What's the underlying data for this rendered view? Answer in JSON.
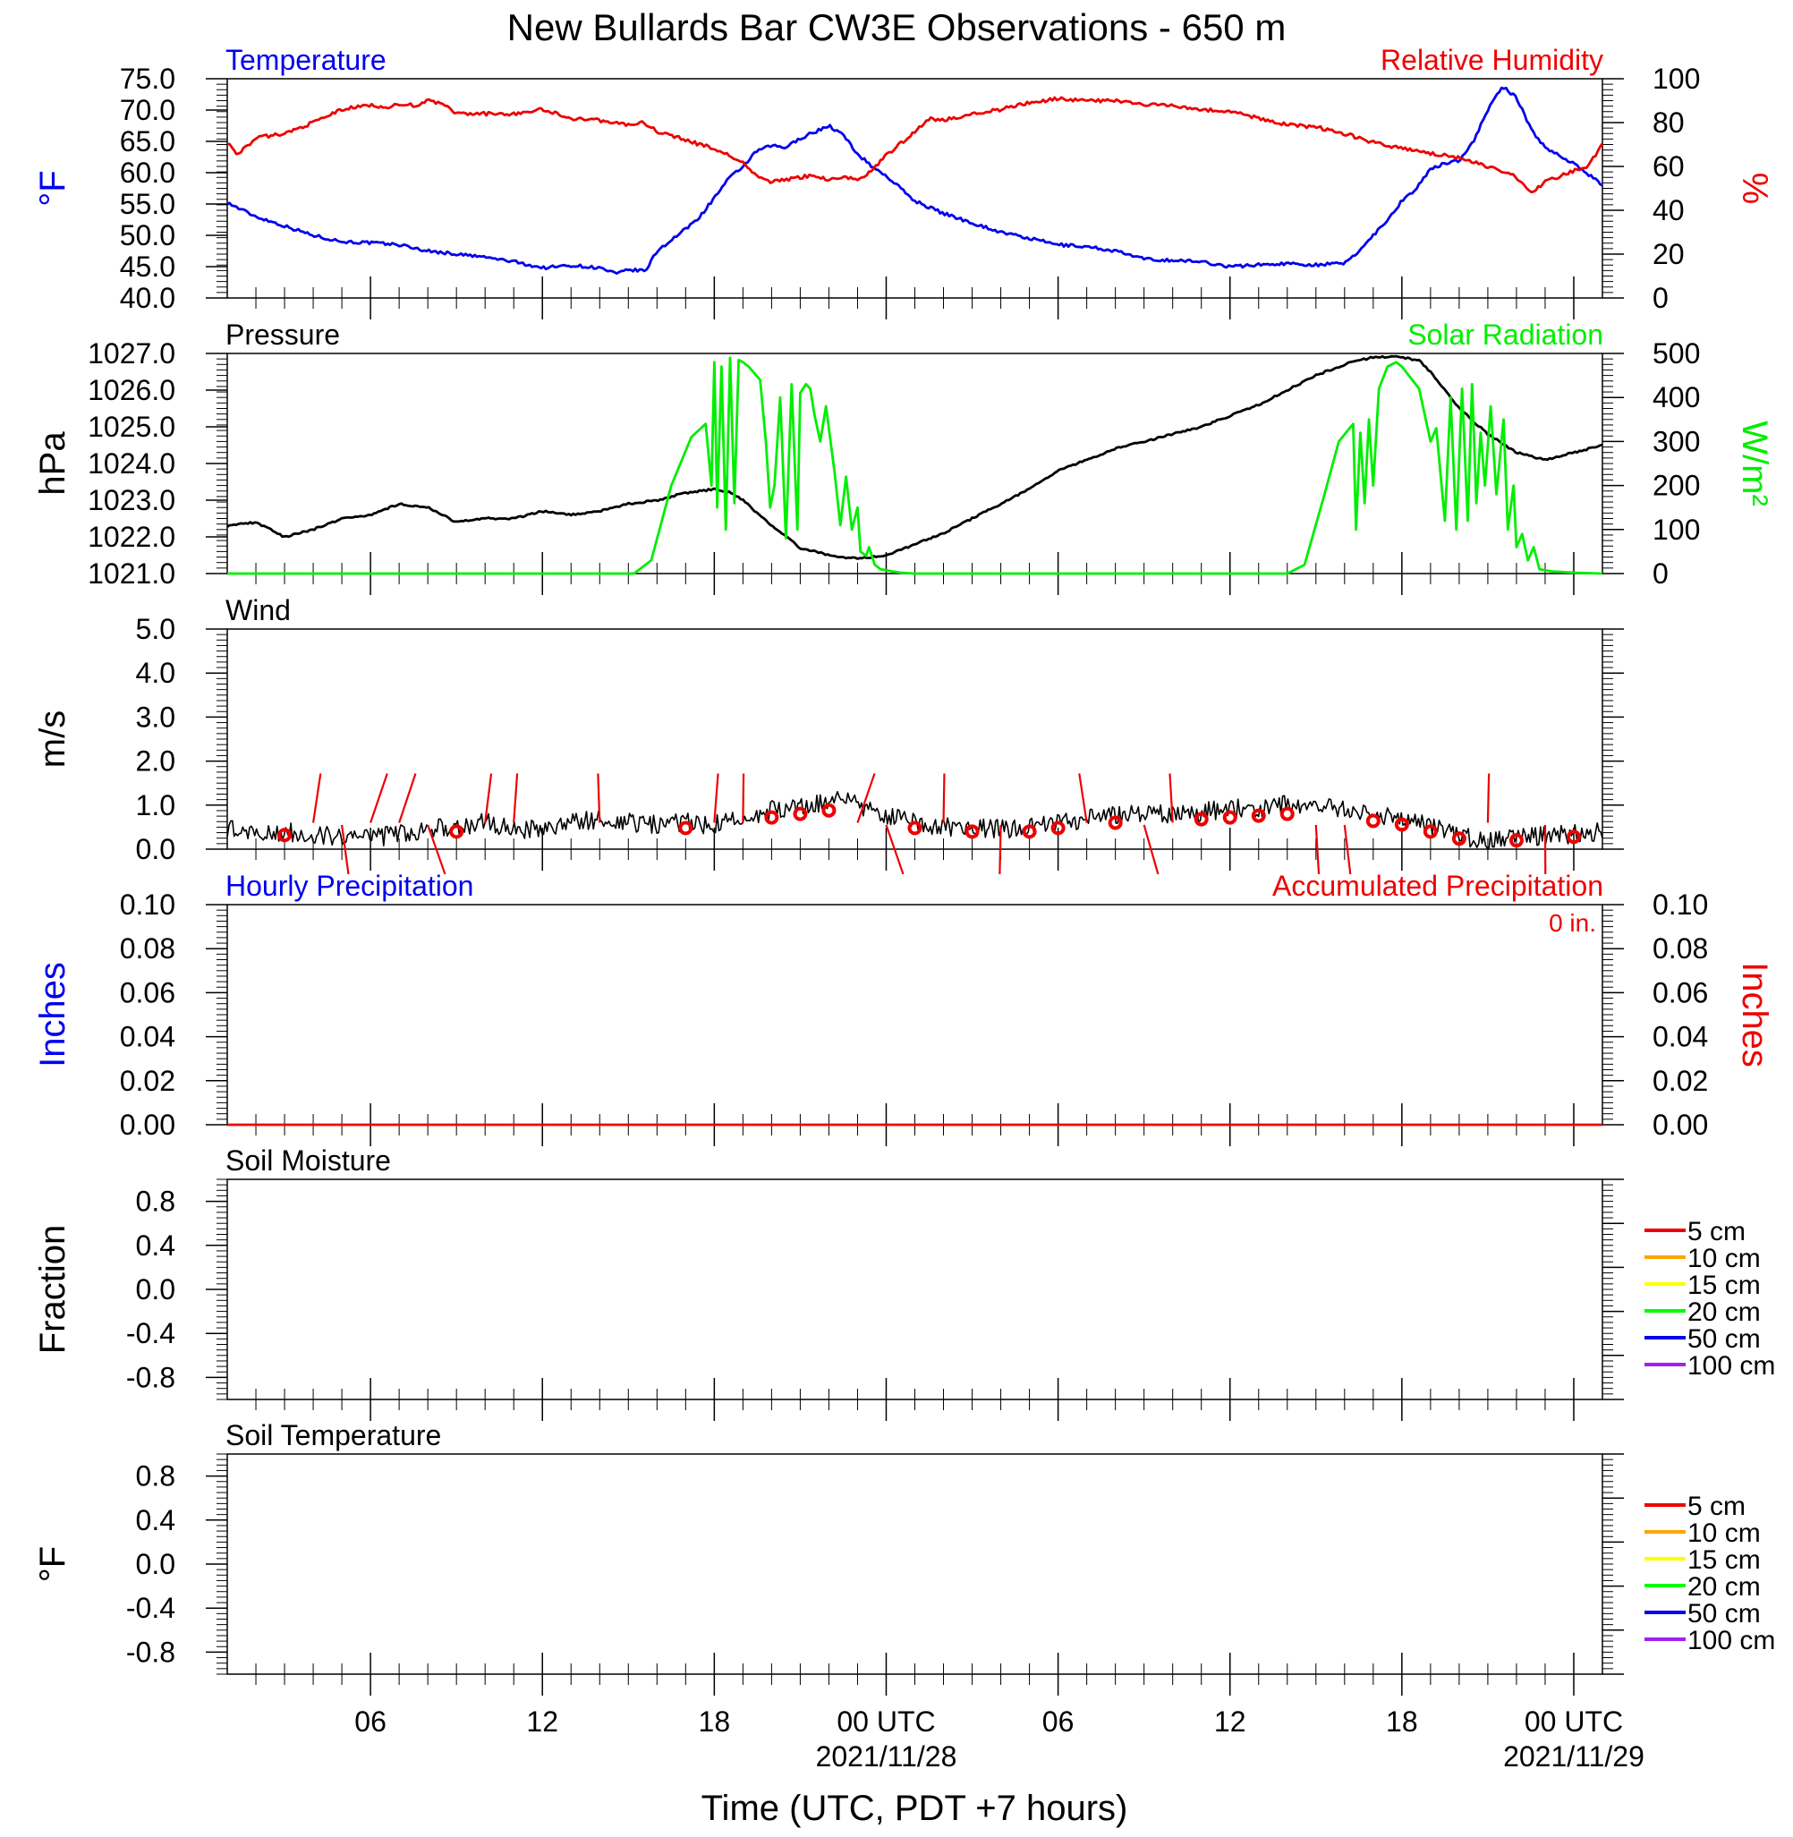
{
  "page_title": "New Bullards Bar CW3E Observations - 650 m",
  "x_axis": {
    "label": "Time (UTC, PDT +7 hours)",
    "ticks": [
      {
        "t": 6,
        "label": "06",
        "date": ""
      },
      {
        "t": 12,
        "label": "12",
        "date": ""
      },
      {
        "t": 18,
        "label": "18",
        "date": ""
      },
      {
        "t": 24,
        "label": "00 UTC",
        "date": "2021/11/28"
      },
      {
        "t": 30,
        "label": "06",
        "date": ""
      },
      {
        "t": 36,
        "label": "12",
        "date": ""
      },
      {
        "t": 42,
        "label": "18",
        "date": ""
      },
      {
        "t": 48,
        "label": "00 UTC",
        "date": "2021/11/29"
      }
    ]
  },
  "chart_data": [
    {
      "id": "temperature_humidity",
      "type": "line",
      "left_title": "Temperature",
      "right_title": "Relative Humidity",
      "left_unit": "°F",
      "right_unit": "%",
      "left_color": "#0000ee",
      "right_color": "#ee0000",
      "xlim": [
        1,
        49
      ],
      "ylim_left": [
        40,
        75
      ],
      "ylim_right": [
        0,
        100
      ],
      "left_ticks": [
        "40.0",
        "45.0",
        "50.0",
        "55.0",
        "60.0",
        "65.0",
        "70.0",
        "75.0"
      ],
      "right_ticks": [
        "0",
        "20",
        "40",
        "60",
        "80",
        "100"
      ],
      "series": [
        {
          "name": "Temperature",
          "axis": "left",
          "color": "#0000ee",
          "x": [
            1,
            2,
            3,
            4,
            5,
            6,
            7,
            8,
            9,
            10,
            11,
            12,
            13,
            14,
            14.6,
            15,
            15.6,
            16,
            17,
            17.5,
            18,
            18.5,
            19,
            19.5,
            20,
            20.5,
            21,
            21.5,
            22,
            22.5,
            23,
            23.5,
            24,
            25,
            26,
            27,
            28,
            29,
            30,
            31,
            32,
            33,
            34,
            35,
            36,
            37,
            38,
            39,
            40,
            40.5,
            41,
            41.5,
            42,
            42.5,
            43,
            43.5,
            44,
            44.5,
            45,
            45.5,
            46,
            46.5,
            47,
            48,
            49
          ],
          "y": [
            55.2,
            53.0,
            51.5,
            50.0,
            49.0,
            48.8,
            48.5,
            47.5,
            47.0,
            46.5,
            45.8,
            44.8,
            45.2,
            44.8,
            43.8,
            44.5,
            44.3,
            47.5,
            51.0,
            53.0,
            56.0,
            59.0,
            61.0,
            63.5,
            64.3,
            64.0,
            65.5,
            66.5,
            67.5,
            66.0,
            63.0,
            61.0,
            59.5,
            55.5,
            53.5,
            52.0,
            50.5,
            49.5,
            48.5,
            48.2,
            47.5,
            46.2,
            46.0,
            45.8,
            45.0,
            45.3,
            45.5,
            45.3,
            45.5,
            47.5,
            50.0,
            52.5,
            55.5,
            57.5,
            60.5,
            61.5,
            62.0,
            65.0,
            70.0,
            73.8,
            72.0,
            67.0,
            64.0,
            61.5,
            58.0
          ]
        },
        {
          "name": "Relative Humidity",
          "axis": "right",
          "color": "#ee0000",
          "x": [
            1,
            1.3,
            1.6,
            2,
            3,
            4,
            5,
            6,
            6.5,
            7,
            7.6,
            8,
            8.6,
            9,
            10,
            11,
            12,
            13,
            14,
            15,
            15.5,
            16,
            17,
            18,
            18.5,
            19,
            19.5,
            20,
            21,
            21.5,
            22,
            22.5,
            23,
            23.5,
            24,
            25,
            25.5,
            26,
            27,
            28,
            29,
            30,
            31,
            32,
            33,
            34,
            35,
            36,
            37,
            38,
            39,
            40,
            41,
            42,
            43,
            44,
            45,
            45.5,
            46,
            46.5,
            47,
            48,
            48.5,
            49
          ],
          "y": [
            71,
            66,
            68,
            73,
            75,
            80,
            86,
            88,
            87,
            88,
            88,
            90,
            88,
            84,
            84,
            84,
            86,
            82,
            81,
            79,
            80,
            76,
            72,
            68,
            65,
            62,
            55,
            53,
            55,
            56,
            54,
            55,
            54,
            58,
            65,
            76,
            82,
            81,
            84,
            86,
            89,
            91,
            90,
            90,
            88,
            88,
            86,
            85,
            82,
            79,
            78,
            75,
            71,
            68,
            66,
            64,
            60,
            58,
            55,
            48,
            53,
            58,
            60,
            70
          ]
        }
      ]
    },
    {
      "id": "pressure_solar",
      "type": "line",
      "left_title": "Pressure",
      "right_title": "Solar Radiation",
      "left_unit": "hPa",
      "right_unit": "W/m²",
      "left_color": "#000000",
      "right_color": "#00ee00",
      "xlim": [
        1,
        49
      ],
      "ylim_left": [
        1021,
        1027
      ],
      "ylim_right": [
        0,
        500
      ],
      "left_ticks": [
        "1021.0",
        "1022.0",
        "1023.0",
        "1024.0",
        "1025.0",
        "1026.0",
        "1027.0"
      ],
      "right_ticks": [
        "0",
        "100",
        "200",
        "300",
        "400",
        "500"
      ],
      "series": [
        {
          "name": "Pressure",
          "axis": "left",
          "color": "#000000",
          "x": [
            1,
            2,
            3,
            4,
            5,
            6,
            7,
            8,
            9,
            10,
            11,
            12,
            13,
            14,
            15,
            16,
            17,
            18,
            18.6,
            19,
            20,
            21,
            22,
            23,
            24,
            25,
            26,
            27,
            28,
            29,
            30,
            31,
            32,
            33,
            34,
            35,
            36,
            37,
            38,
            39,
            40,
            41,
            42,
            42.6,
            43,
            44,
            45,
            46,
            47,
            48,
            49
          ],
          "y": [
            1022.3,
            1022.4,
            1022.0,
            1022.2,
            1022.5,
            1022.6,
            1022.9,
            1022.8,
            1022.4,
            1022.5,
            1022.5,
            1022.7,
            1022.6,
            1022.7,
            1022.9,
            1023.0,
            1023.2,
            1023.3,
            1023.2,
            1023.0,
            1022.3,
            1021.7,
            1021.5,
            1021.4,
            1021.5,
            1021.8,
            1022.1,
            1022.5,
            1022.9,
            1023.3,
            1023.8,
            1024.1,
            1024.4,
            1024.6,
            1024.8,
            1025.0,
            1025.3,
            1025.6,
            1026.0,
            1026.4,
            1026.7,
            1026.9,
            1026.9,
            1026.8,
            1026.5,
            1025.5,
            1024.8,
            1024.3,
            1024.1,
            1024.3,
            1024.5
          ]
        },
        {
          "name": "Solar Radiation",
          "axis": "right",
          "color": "#00ee00",
          "x": [
            1,
            15.2,
            15.8,
            16.5,
            17.2,
            17.7,
            17.9,
            18.0,
            18.1,
            18.25,
            18.4,
            18.55,
            18.7,
            18.85,
            19.0,
            19.2,
            19.6,
            19.8,
            19.95,
            20.1,
            20.3,
            20.5,
            20.7,
            20.9,
            21.0,
            21.2,
            21.35,
            21.5,
            21.7,
            21.9,
            22.2,
            22.4,
            22.6,
            22.8,
            23.0,
            23.1,
            23.3,
            23.4,
            23.6,
            23.8,
            24.2,
            24.5,
            25,
            38,
            38.6,
            39.3,
            39.8,
            40.3,
            40.4,
            40.55,
            40.7,
            40.85,
            41.0,
            41.2,
            41.5,
            41.8,
            42.0,
            42.6,
            43.0,
            43.2,
            43.5,
            43.7,
            43.9,
            44.1,
            44.3,
            44.45,
            44.6,
            44.75,
            44.9,
            45.1,
            45.3,
            45.55,
            45.7,
            45.9,
            46.0,
            46.2,
            46.4,
            46.6,
            46.8,
            47.2,
            48,
            49
          ],
          "y": [
            0,
            0,
            30,
            200,
            310,
            340,
            200,
            480,
            150,
            470,
            100,
            490,
            160,
            485,
            480,
            470,
            440,
            300,
            150,
            200,
            400,
            80,
            430,
            100,
            410,
            430,
            420,
            360,
            300,
            380,
            230,
            110,
            220,
            100,
            150,
            50,
            40,
            60,
            20,
            10,
            5,
            2,
            0,
            0,
            20,
            180,
            300,
            340,
            100,
            320,
            160,
            350,
            200,
            420,
            470,
            480,
            470,
            420,
            300,
            330,
            120,
            400,
            100,
            420,
            120,
            430,
            160,
            320,
            200,
            380,
            180,
            350,
            100,
            200,
            60,
            90,
            30,
            60,
            10,
            5,
            2,
            0
          ]
        }
      ]
    },
    {
      "id": "wind",
      "type": "line",
      "left_title": "Wind",
      "left_unit": "m/s",
      "left_color": "#000000",
      "xlim": [
        1,
        49
      ],
      "ylim_left": [
        0,
        5
      ],
      "left_ticks": [
        "0.0",
        "1.0",
        "2.0",
        "3.0",
        "4.0",
        "5.0"
      ],
      "series": [
        {
          "name": "Wind speed",
          "axis": "left",
          "color": "#000000",
          "x": [
            1,
            2,
            3,
            4,
            5,
            6,
            7,
            8,
            9,
            10,
            11,
            12,
            13,
            14,
            15,
            16,
            17,
            18,
            19,
            20,
            21,
            22,
            22.5,
            23,
            24,
            25,
            26,
            27,
            28,
            29,
            30,
            31,
            32,
            33,
            34,
            35,
            36,
            37,
            38,
            39,
            40,
            41,
            42,
            43,
            44,
            45,
            46,
            47,
            48,
            49
          ],
          "y": [
            0.5,
            0.3,
            0.4,
            0.35,
            0.3,
            0.25,
            0.35,
            0.45,
            0.5,
            0.6,
            0.5,
            0.4,
            0.6,
            0.7,
            0.6,
            0.55,
            0.6,
            0.55,
            0.7,
            0.9,
            1.0,
            1.1,
            1.3,
            1.0,
            0.8,
            0.6,
            0.5,
            0.5,
            0.45,
            0.5,
            0.6,
            0.7,
            0.75,
            0.85,
            0.8,
            0.85,
            0.9,
            0.95,
            1.0,
            0.95,
            0.9,
            0.8,
            0.7,
            0.5,
            0.3,
            0.2,
            0.25,
            0.3,
            0.35,
            0.4
          ]
        }
      ],
      "barb_times": [
        3,
        4,
        5,
        6,
        7,
        8,
        9,
        10,
        11,
        14,
        17,
        18,
        19,
        20,
        21,
        22,
        23,
        24,
        25,
        26,
        27,
        28,
        29,
        30,
        31,
        32,
        33,
        34,
        35,
        36,
        37,
        38,
        39,
        40,
        41,
        42,
        43,
        44,
        45,
        46,
        47,
        48
      ]
    },
    {
      "id": "precipitation",
      "type": "line",
      "left_title": "Hourly Precipitation",
      "right_title": "Accumulated Precipitation",
      "annotation": "0 in.",
      "left_unit": "Inches",
      "right_unit": "Inches",
      "left_color": "#0000ee",
      "right_color": "#ee0000",
      "xlim": [
        1,
        49
      ],
      "ylim_left": [
        0,
        0.1
      ],
      "ylim_right": [
        0,
        0.1
      ],
      "left_ticks": [
        "0.00",
        "0.02",
        "0.04",
        "0.06",
        "0.08",
        "0.10"
      ],
      "right_ticks": [
        "0.00",
        "0.02",
        "0.04",
        "0.06",
        "0.08",
        "0.10"
      ],
      "series": [
        {
          "name": "Accumulated Precipitation",
          "axis": "right",
          "color": "#ee0000",
          "x": [
            1,
            49
          ],
          "y": [
            0,
            0
          ]
        }
      ]
    },
    {
      "id": "soil_moisture",
      "type": "line",
      "left_title": "Soil Moisture",
      "left_unit": "Fraction",
      "left_color": "#000000",
      "xlim": [
        1,
        49
      ],
      "ylim_left": [
        -1,
        1
      ],
      "left_ticks": [
        "-0.8",
        "-0.4",
        "0.0",
        "0.4",
        "0.8"
      ],
      "legend": [
        {
          "label": "5 cm",
          "color": "#ee0000"
        },
        {
          "label": "10 cm",
          "color": "#ffa500"
        },
        {
          "label": "15 cm",
          "color": "#ffff00"
        },
        {
          "label": "20 cm",
          "color": "#00ff00"
        },
        {
          "label": "50 cm",
          "color": "#0000ee"
        },
        {
          "label": "100 cm",
          "color": "#a020f0"
        }
      ],
      "series": []
    },
    {
      "id": "soil_temperature",
      "type": "line",
      "left_title": "Soil Temperature",
      "left_unit": "°F",
      "left_color": "#000000",
      "xlim": [
        1,
        49
      ],
      "ylim_left": [
        -1,
        1
      ],
      "left_ticks": [
        "-0.8",
        "-0.4",
        "0.0",
        "0.4",
        "0.8"
      ],
      "legend": [
        {
          "label": "5 cm",
          "color": "#ee0000"
        },
        {
          "label": "10 cm",
          "color": "#ffa500"
        },
        {
          "label": "15 cm",
          "color": "#ffff00"
        },
        {
          "label": "20 cm",
          "color": "#00ff00"
        },
        {
          "label": "50 cm",
          "color": "#0000ee"
        },
        {
          "label": "100 cm",
          "color": "#a020f0"
        }
      ],
      "series": []
    }
  ]
}
